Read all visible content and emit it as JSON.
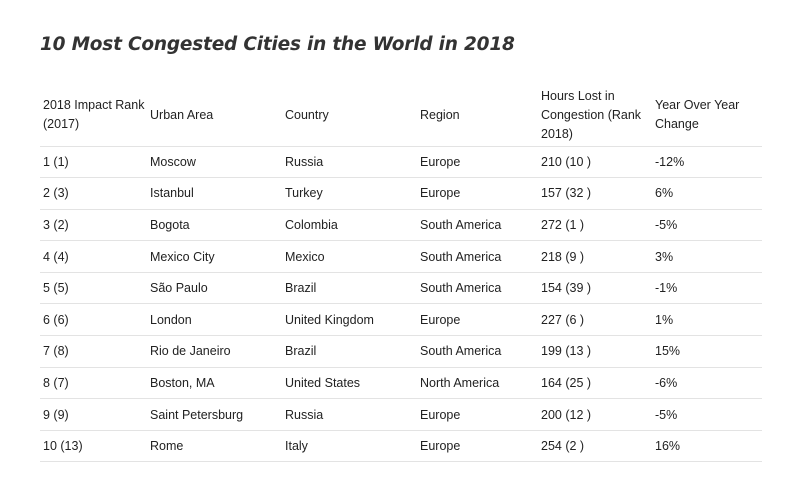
{
  "title": "10 Most Congested Cities in the World in 2018",
  "table": {
    "headers": [
      "2018 Impact Rank (2017)",
      "Urban Area",
      "Country",
      "Region",
      "Hours Lost in Congestion (Rank 2018)",
      "Year Over Year Change"
    ],
    "rows": [
      [
        "1 (1)",
        "Moscow",
        "Russia",
        "Europe",
        "210 (10 )",
        "-12%"
      ],
      [
        "2 (3)",
        "Istanbul",
        "Turkey",
        "Europe",
        "157 (32 )",
        "6%"
      ],
      [
        "3 (2)",
        "Bogota",
        "Colombia",
        "South America",
        "272 (1 )",
        "-5%"
      ],
      [
        "4 (4)",
        "Mexico City",
        "Mexico",
        "South America",
        "218 (9 )",
        "3%"
      ],
      [
        "5 (5)",
        "São Paulo",
        "Brazil",
        "South America",
        "154 (39 )",
        "-1%"
      ],
      [
        "6 (6)",
        "London",
        "United Kingdom",
        "Europe",
        "227 (6 )",
        "1%"
      ],
      [
        "7 (8)",
        "Rio de Janeiro",
        "Brazil",
        "South America",
        "199 (13 )",
        "15%"
      ],
      [
        "8 (7)",
        "Boston, MA",
        "United States",
        "North America",
        "164 (25 )",
        "-6%"
      ],
      [
        "9 (9)",
        "Saint Petersburg",
        "Russia",
        "Europe",
        "200 (12 )",
        "-5%"
      ],
      [
        "10 (13)",
        "Rome",
        "Italy",
        "Europe",
        "254 (2 )",
        "16%"
      ]
    ]
  },
  "colors": {
    "title": "#333333",
    "text": "#222222",
    "divider": "#e3e3e3",
    "background": "#ffffff"
  }
}
